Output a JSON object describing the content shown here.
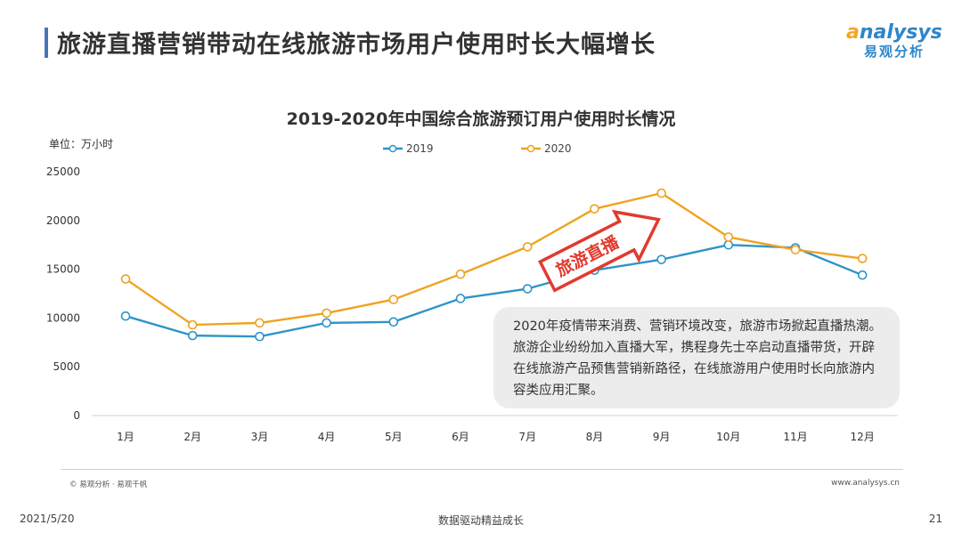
{
  "page": {
    "title": "旅游直播营销带动在线旅游市场用户使用时长大幅增长",
    "logo_top_a": "a",
    "logo_top_rest": "nalysys",
    "logo_bottom": "易观分析",
    "footer_source": "© 易观分析 · 易观千帆",
    "footer_url": "www.analysys.cn",
    "date": "2021/5/20",
    "slogan": "数据驱动精益成长",
    "page_number": "21"
  },
  "colors": {
    "series_2019": "#2e94c8",
    "series_2020": "#efa321",
    "accent": "#4a72b8",
    "arrow_red": "#e23a2e"
  },
  "chart_data": {
    "type": "line",
    "title": "2019-2020年中国综合旅游预订用户使用时长情况",
    "unit_label": "单位：万小时",
    "categories": [
      "1月",
      "2月",
      "3月",
      "4月",
      "5月",
      "6月",
      "7月",
      "8月",
      "9月",
      "10月",
      "11月",
      "12月"
    ],
    "series": [
      {
        "name": "2019",
        "values": [
          10200,
          8200,
          8100,
          9500,
          9600,
          12000,
          13000,
          14900,
          16000,
          17500,
          17200,
          14400
        ]
      },
      {
        "name": "2020",
        "values": [
          14000,
          9300,
          9500,
          10500,
          11900,
          14500,
          17300,
          21200,
          22800,
          18300,
          17000,
          16100
        ]
      }
    ],
    "yticks": [
      "0",
      "5000",
      "10000",
      "15000",
      "20000",
      "25000"
    ],
    "ylim": [
      0,
      25000
    ],
    "grid": false,
    "legend": "top-center",
    "annotation_arrow": "旅游直播",
    "annotation_box": "2020年疫情带来消费、营销环境改变，旅游市场掀起直播热潮。旅游企业纷纷加入直播大军，携程身先士卒启动直播带货，开辟在线旅游产品预售营销新路径，在线旅游用户使用时长向旅游内容类应用汇聚。"
  }
}
